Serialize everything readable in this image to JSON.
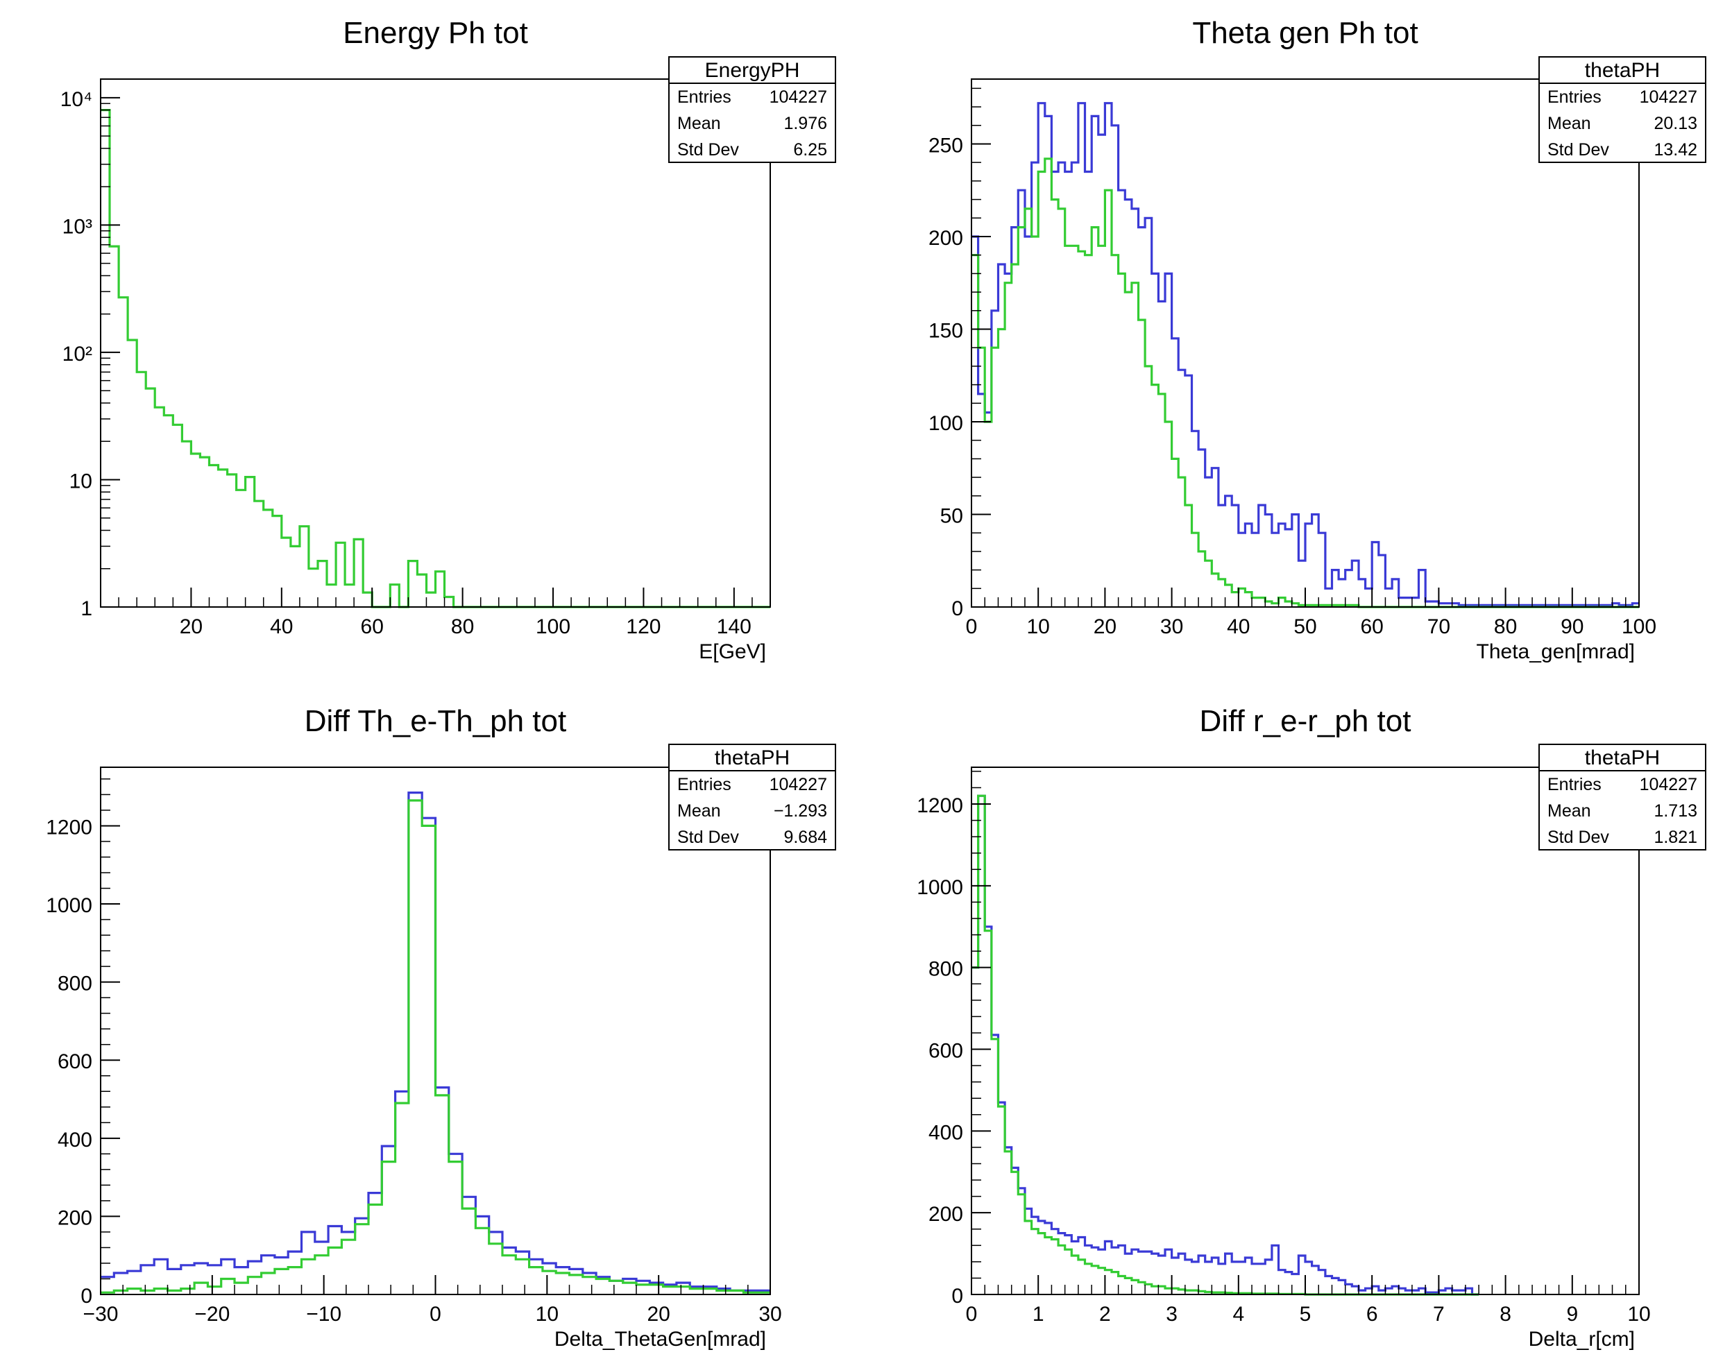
{
  "colors": {
    "blue": "#3a3ad6",
    "green": "#33cc33",
    "frame": "#000000"
  },
  "chart_data": [
    {
      "type": "histogram",
      "title": "Energy Ph tot",
      "xlabel": "E[GeV]",
      "xlim": [
        0,
        148
      ],
      "ylog": true,
      "ylim": [
        1,
        14000
      ],
      "y_tick_labels": [
        "1",
        "10",
        "10²",
        "10³",
        "10⁴"
      ],
      "x_tick_labels": [
        "20",
        "40",
        "60",
        "80",
        "100",
        "120",
        "140"
      ],
      "stats": {
        "name": "EnergyPH",
        "rows": [
          [
            "Entries",
            "104227"
          ],
          [
            "Mean",
            "1.976"
          ],
          [
            "Std Dev",
            "6.25"
          ]
        ]
      },
      "series": [
        {
          "color_key": "green",
          "bin_width": 2,
          "x_start": 0,
          "values": [
            8000,
            680,
            270,
            125,
            70,
            52,
            37,
            32,
            27,
            20,
            16,
            15,
            13,
            12,
            11,
            8.3,
            10.5,
            6.8,
            5.8,
            5.2,
            3.5,
            3.0,
            4.3,
            2.0,
            2.3,
            1.5,
            3.2,
            1.5,
            3.4,
            1.3,
            1.0,
            1.0,
            1.5,
            1.0,
            2.3,
            1.8,
            1.3,
            1.9,
            1.2,
            1.0,
            1.0,
            1.0,
            1.0,
            1.0,
            1.0,
            1.0,
            1.0,
            1.0,
            1.0,
            1.0,
            1.0,
            1.0,
            1.0,
            1.0,
            1.0,
            1.0,
            1.0,
            1.0,
            1.0,
            1.0,
            1.0,
            1.0,
            1.0,
            1.0,
            1.0,
            1.0,
            1.0,
            1.0,
            1.0,
            1.0,
            1.0,
            1.0,
            1.0,
            1.0
          ]
        }
      ]
    },
    {
      "type": "histogram",
      "title": "Theta gen Ph tot",
      "xlabel": "Theta_gen[mrad]",
      "xlim": [
        0,
        100
      ],
      "ylog": false,
      "ylim": [
        0,
        285
      ],
      "y_ticks": [
        0,
        50,
        100,
        150,
        200,
        250
      ],
      "x_ticks": [
        0,
        10,
        20,
        30,
        40,
        50,
        60,
        70,
        80,
        90,
        100
      ],
      "stats": {
        "name": "thetaPH",
        "rows": [
          [
            "Entries",
            "104227"
          ],
          [
            "Mean",
            "20.13"
          ],
          [
            "Std Dev",
            "13.42"
          ]
        ]
      },
      "series": [
        {
          "color_key": "blue",
          "bin_width": 1,
          "x_start": 0,
          "values": [
            200,
            115,
            105,
            160,
            185,
            180,
            205,
            225,
            200,
            240,
            272,
            265,
            235,
            240,
            235,
            240,
            272,
            235,
            265,
            255,
            272,
            260,
            225,
            220,
            215,
            205,
            210,
            180,
            165,
            180,
            145,
            128,
            125,
            95,
            85,
            70,
            75,
            55,
            60,
            55,
            40,
            45,
            40,
            55,
            50,
            40,
            45,
            42,
            50,
            25,
            45,
            50,
            40,
            10,
            20,
            15,
            20,
            25,
            15,
            10,
            35,
            28,
            10,
            15,
            5,
            5,
            5,
            20,
            3,
            3,
            2,
            2,
            2,
            1,
            1,
            1,
            1,
            1,
            1,
            1,
            1,
            1,
            1,
            1,
            1,
            1,
            1,
            1,
            1,
            1,
            1,
            1,
            1,
            1,
            1,
            1,
            2,
            1,
            1,
            2
          ]
        },
        {
          "color_key": "green",
          "bin_width": 1,
          "x_start": 0,
          "values": [
            190,
            140,
            100,
            140,
            150,
            175,
            185,
            205,
            215,
            200,
            235,
            242,
            220,
            215,
            195,
            195,
            192,
            190,
            205,
            195,
            225,
            190,
            180,
            170,
            175,
            155,
            130,
            120,
            115,
            100,
            80,
            70,
            55,
            40,
            30,
            25,
            18,
            15,
            12,
            8,
            10,
            8,
            5,
            5,
            3,
            2,
            5,
            3,
            2,
            1,
            1,
            1,
            1,
            1,
            1,
            1,
            1,
            1,
            0,
            0,
            0,
            0,
            0,
            0,
            0,
            0,
            0,
            0,
            0,
            0,
            0,
            0,
            0,
            0,
            0,
            0,
            0,
            0,
            0,
            0,
            0,
            0,
            0,
            0,
            0,
            0,
            0,
            0,
            0,
            0,
            0,
            0,
            0,
            0,
            0,
            0,
            0,
            0,
            0,
            0
          ]
        }
      ]
    },
    {
      "type": "histogram",
      "title": "Diff Th_e-Th_ph tot",
      "xlabel": "Delta_ThetaGen[mrad]",
      "xlim": [
        -30,
        30
      ],
      "ylog": false,
      "ylim": [
        0,
        1350
      ],
      "y_ticks": [
        0,
        200,
        400,
        600,
        800,
        1000,
        1200
      ],
      "x_ticks": [
        -30,
        -20,
        -10,
        0,
        10,
        20,
        30
      ],
      "x_tick_labels": [
        "−30",
        "−20",
        "−10",
        "0",
        "10",
        "20",
        "30"
      ],
      "stats": {
        "name": "thetaPH",
        "rows": [
          [
            "Entries",
            "104227"
          ],
          [
            "Mean",
            "−1.293"
          ],
          [
            "Std Dev",
            "9.684"
          ]
        ]
      },
      "series": [
        {
          "color_key": "blue",
          "bin_width": 1.2,
          "x_start": -30,
          "values": [
            45,
            55,
            60,
            75,
            90,
            65,
            75,
            80,
            75,
            90,
            70,
            85,
            100,
            95,
            110,
            160,
            135,
            175,
            160,
            195,
            260,
            380,
            520,
            1285,
            1220,
            530,
            360,
            250,
            200,
            160,
            120,
            110,
            90,
            80,
            70,
            65,
            55,
            45,
            35,
            40,
            35,
            30,
            25,
            30,
            20,
            20,
            15,
            10,
            10,
            10
          ]
        },
        {
          "color_key": "green",
          "bin_width": 1.2,
          "x_start": -30,
          "values": [
            5,
            10,
            15,
            10,
            15,
            10,
            15,
            30,
            20,
            40,
            30,
            45,
            55,
            65,
            70,
            90,
            100,
            120,
            140,
            180,
            230,
            340,
            490,
            1265,
            1200,
            510,
            340,
            220,
            170,
            130,
            100,
            90,
            70,
            60,
            55,
            50,
            45,
            40,
            35,
            30,
            25,
            25,
            20,
            20,
            15,
            15,
            10,
            10,
            5,
            5
          ]
        }
      ]
    },
    {
      "type": "histogram",
      "title": "Diff r_e-r_ph tot",
      "xlabel": "Delta_r[cm]",
      "xlim": [
        0,
        10
      ],
      "ylog": false,
      "ylim": [
        0,
        1290
      ],
      "y_ticks": [
        0,
        200,
        400,
        600,
        800,
        1000,
        1200
      ],
      "x_ticks": [
        0,
        1,
        2,
        3,
        4,
        5,
        6,
        7,
        8,
        9,
        10
      ],
      "stats": {
        "name": "thetaPH",
        "rows": [
          [
            "Entries",
            "104227"
          ],
          [
            "Mean",
            "1.713"
          ],
          [
            "Std Dev",
            "1.821"
          ]
        ]
      },
      "series": [
        {
          "color_key": "blue",
          "bin_width": 0.1,
          "x_start": 0,
          "values": [
            800,
            1220,
            900,
            635,
            470,
            360,
            310,
            260,
            210,
            190,
            180,
            175,
            160,
            150,
            145,
            130,
            140,
            120,
            115,
            110,
            130,
            115,
            120,
            100,
            110,
            105,
            105,
            100,
            95,
            110,
            90,
            100,
            85,
            80,
            95,
            80,
            90,
            75,
            100,
            80,
            80,
            90,
            75,
            75,
            85,
            120,
            60,
            55,
            50,
            95,
            80,
            70,
            60,
            45,
            40,
            35,
            25,
            20,
            10,
            15,
            20,
            10,
            15,
            20,
            15,
            10,
            10,
            15,
            5,
            5,
            10,
            15,
            10,
            10,
            15,
            0
          ]
        },
        {
          "color_key": "green",
          "bin_width": 0.1,
          "x_start": 0,
          "values": [
            800,
            1220,
            890,
            625,
            460,
            350,
            300,
            245,
            180,
            160,
            150,
            140,
            135,
            120,
            110,
            95,
            85,
            75,
            70,
            65,
            60,
            55,
            45,
            40,
            35,
            30,
            25,
            20,
            20,
            15,
            15,
            12,
            10,
            10,
            8,
            6,
            5,
            5,
            4,
            3,
            3,
            3,
            2,
            2,
            2,
            2,
            1,
            1,
            1,
            1,
            0,
            0,
            0,
            0,
            0,
            0,
            0,
            0,
            0,
            0,
            0,
            0,
            0,
            0,
            0,
            0,
            0,
            0,
            0,
            0,
            0,
            0,
            0,
            0,
            0,
            0
          ]
        }
      ]
    }
  ]
}
